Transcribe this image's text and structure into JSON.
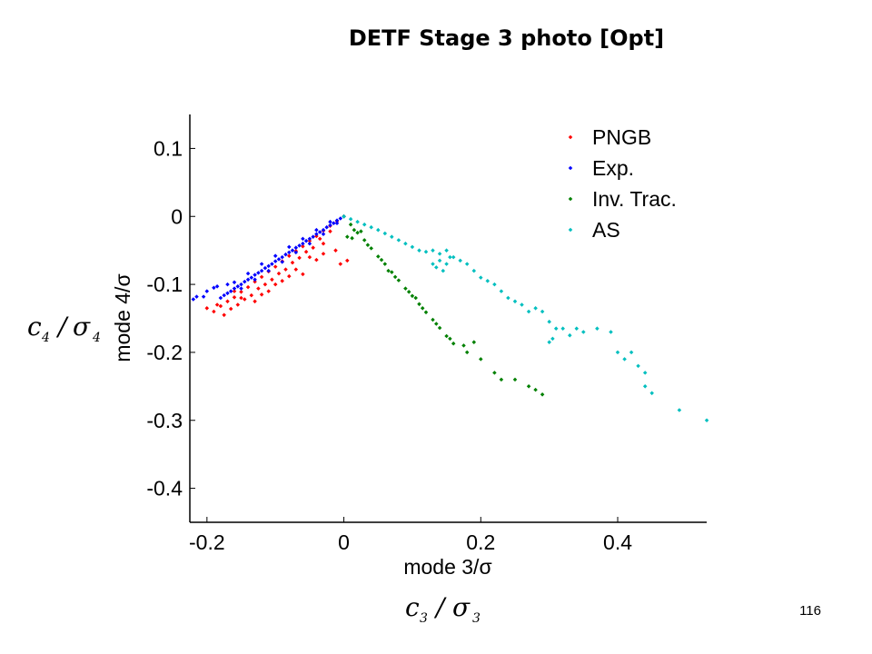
{
  "slide": {
    "title": "DETF Stage 3 photo [Opt]",
    "page_number": "116",
    "math_x_label": {
      "symbol": "c",
      "sub": "3",
      "sigma": "σ",
      "sigma_sub": "3"
    },
    "math_y_label": {
      "symbol": "c",
      "sub": "4",
      "sigma": "σ",
      "sigma_sub": "4"
    }
  },
  "chart_data": {
    "type": "scatter",
    "xlabel": "mode 3/σ",
    "ylabel": "mode 4/σ",
    "xlim": [
      -0.225,
      0.53
    ],
    "ylim": [
      -0.45,
      0.15
    ],
    "xticks": [
      -0.2,
      0,
      0.2,
      0.4
    ],
    "xtick_labels": [
      "-0.2",
      "0",
      "0.2",
      "0.4"
    ],
    "yticks": [
      0.1,
      0,
      -0.1,
      -0.2,
      -0.3,
      -0.4
    ],
    "ytick_labels": [
      "0.1",
      "0",
      "-0.1",
      "-0.2",
      "-0.3",
      "-0.4"
    ],
    "grid": false,
    "legend_position": "top-right",
    "colors": {
      "PNGB": "#ff0000",
      "Exp.": "#0000ff",
      "Inv. Trac.": "#008000",
      "AS": "#00bfbf"
    },
    "series": [
      {
        "name": "PNGB",
        "points": [
          [
            0,
            0
          ],
          [
            -0.01,
            -0.007
          ],
          [
            -0.02,
            -0.014
          ],
          [
            -0.03,
            -0.021
          ],
          [
            -0.04,
            -0.029
          ],
          [
            -0.05,
            -0.036
          ],
          [
            -0.06,
            -0.044
          ],
          [
            -0.07,
            -0.051
          ],
          [
            -0.08,
            -0.058
          ],
          [
            -0.09,
            -0.066
          ],
          [
            -0.1,
            -0.074
          ],
          [
            -0.11,
            -0.081
          ],
          [
            -0.12,
            -0.089
          ],
          [
            -0.13,
            -0.096
          ],
          [
            -0.14,
            -0.104
          ],
          [
            -0.15,
            -0.111
          ],
          [
            -0.16,
            -0.119
          ],
          [
            -0.17,
            -0.125
          ],
          [
            -0.18,
            -0.132
          ],
          [
            -0.19,
            -0.14
          ],
          [
            -0.02,
            -0.022
          ],
          [
            -0.035,
            -0.033
          ],
          [
            -0.045,
            -0.046
          ],
          [
            -0.055,
            -0.052
          ],
          [
            -0.065,
            -0.061
          ],
          [
            -0.075,
            -0.068
          ],
          [
            -0.085,
            -0.078
          ],
          [
            -0.095,
            -0.084
          ],
          [
            -0.105,
            -0.093
          ],
          [
            -0.115,
            -0.1
          ],
          [
            -0.125,
            -0.106
          ],
          [
            -0.135,
            -0.116
          ],
          [
            -0.145,
            -0.122
          ],
          [
            -0.155,
            -0.13
          ],
          [
            -0.165,
            -0.136
          ],
          [
            -0.03,
            -0.04
          ],
          [
            -0.05,
            -0.06
          ],
          [
            -0.07,
            -0.078
          ],
          [
            -0.09,
            -0.095
          ],
          [
            -0.11,
            -0.11
          ],
          [
            -0.13,
            -0.125
          ],
          [
            -0.175,
            -0.145
          ],
          [
            -0.185,
            -0.13
          ],
          [
            -0.2,
            -0.135
          ],
          [
            -0.012,
            -0.05
          ],
          [
            -0.005,
            -0.07
          ],
          [
            0.005,
            -0.065
          ],
          [
            -0.03,
            -0.055
          ],
          [
            -0.06,
            -0.085
          ],
          [
            -0.1,
            -0.1
          ],
          [
            -0.04,
            -0.064
          ],
          [
            -0.08,
            -0.088
          ],
          [
            -0.12,
            -0.115
          ],
          [
            -0.15,
            -0.12
          ],
          [
            -0.16,
            -0.11
          ]
        ]
      },
      {
        "name": "Exp.",
        "points": [
          [
            0,
            0
          ],
          [
            -0.005,
            -0.003
          ],
          [
            -0.01,
            -0.006
          ],
          [
            -0.015,
            -0.01
          ],
          [
            -0.02,
            -0.013
          ],
          [
            -0.025,
            -0.016
          ],
          [
            -0.03,
            -0.02
          ],
          [
            -0.035,
            -0.023
          ],
          [
            -0.04,
            -0.026
          ],
          [
            -0.045,
            -0.03
          ],
          [
            -0.05,
            -0.033
          ],
          [
            -0.055,
            -0.036
          ],
          [
            -0.06,
            -0.04
          ],
          [
            -0.065,
            -0.043
          ],
          [
            -0.07,
            -0.046
          ],
          [
            -0.075,
            -0.05
          ],
          [
            -0.08,
            -0.053
          ],
          [
            -0.085,
            -0.056
          ],
          [
            -0.09,
            -0.06
          ],
          [
            -0.095,
            -0.063
          ],
          [
            -0.1,
            -0.066
          ],
          [
            -0.105,
            -0.07
          ],
          [
            -0.11,
            -0.073
          ],
          [
            -0.115,
            -0.076
          ],
          [
            -0.12,
            -0.08
          ],
          [
            -0.125,
            -0.083
          ],
          [
            -0.13,
            -0.086
          ],
          [
            -0.135,
            -0.09
          ],
          [
            -0.14,
            -0.093
          ],
          [
            -0.145,
            -0.096
          ],
          [
            -0.15,
            -0.1
          ],
          [
            -0.155,
            -0.103
          ],
          [
            -0.16,
            -0.106
          ],
          [
            -0.165,
            -0.11
          ],
          [
            -0.17,
            -0.113
          ],
          [
            -0.175,
            -0.116
          ],
          [
            -0.18,
            -0.12
          ],
          [
            -0.185,
            -0.103
          ],
          [
            -0.19,
            -0.105
          ],
          [
            -0.2,
            -0.11
          ],
          [
            -0.205,
            -0.118
          ],
          [
            -0.215,
            -0.118
          ],
          [
            -0.22,
            -0.122
          ],
          [
            -0.01,
            -0.01
          ],
          [
            -0.03,
            -0.026
          ],
          [
            -0.05,
            -0.04
          ],
          [
            -0.07,
            -0.053
          ],
          [
            -0.09,
            -0.067
          ],
          [
            -0.11,
            -0.08
          ],
          [
            -0.13,
            -0.093
          ],
          [
            -0.15,
            -0.106
          ],
          [
            -0.02,
            -0.008
          ],
          [
            -0.04,
            -0.02
          ],
          [
            -0.06,
            -0.033
          ],
          [
            -0.08,
            -0.045
          ],
          [
            -0.1,
            -0.058
          ],
          [
            -0.12,
            -0.07
          ],
          [
            -0.14,
            -0.084
          ],
          [
            -0.16,
            -0.097
          ],
          [
            -0.17,
            -0.1
          ]
        ]
      },
      {
        "name": "Inv. Trac.",
        "points": [
          [
            0,
            0
          ],
          [
            0.01,
            -0.012
          ],
          [
            0.02,
            -0.024
          ],
          [
            0.03,
            -0.035
          ],
          [
            0.04,
            -0.047
          ],
          [
            0.05,
            -0.059
          ],
          [
            0.06,
            -0.07
          ],
          [
            0.07,
            -0.082
          ],
          [
            0.08,
            -0.094
          ],
          [
            0.09,
            -0.106
          ],
          [
            0.1,
            -0.117
          ],
          [
            0.11,
            -0.129
          ],
          [
            0.12,
            -0.141
          ],
          [
            0.13,
            -0.152
          ],
          [
            0.14,
            -0.164
          ],
          [
            0.15,
            -0.176
          ],
          [
            0.16,
            -0.187
          ],
          [
            0.015,
            -0.02
          ],
          [
            0.035,
            -0.042
          ],
          [
            0.055,
            -0.064
          ],
          [
            0.075,
            -0.089
          ],
          [
            0.095,
            -0.111
          ],
          [
            0.115,
            -0.135
          ],
          [
            0.135,
            -0.158
          ],
          [
            0.155,
            -0.18
          ],
          [
            0.175,
            -0.19
          ],
          [
            0.18,
            -0.2
          ],
          [
            0.19,
            -0.185
          ],
          [
            0.2,
            -0.21
          ],
          [
            0.22,
            -0.23
          ],
          [
            0.23,
            -0.24
          ],
          [
            0.25,
            -0.24
          ],
          [
            0.27,
            -0.25
          ],
          [
            0.28,
            -0.255
          ],
          [
            0.29,
            -0.262
          ],
          [
            0.005,
            -0.03
          ],
          [
            0.012,
            -0.032
          ],
          [
            0.025,
            -0.022
          ],
          [
            0.065,
            -0.08
          ],
          [
            0.105,
            -0.12
          ]
        ]
      },
      {
        "name": "AS",
        "points": [
          [
            0,
            0
          ],
          [
            0.01,
            -0.004
          ],
          [
            0.02,
            -0.008
          ],
          [
            0.03,
            -0.012
          ],
          [
            0.04,
            -0.016
          ],
          [
            0.05,
            -0.02
          ],
          [
            0.06,
            -0.025
          ],
          [
            0.07,
            -0.03
          ],
          [
            0.08,
            -0.035
          ],
          [
            0.09,
            -0.04
          ],
          [
            0.1,
            -0.045
          ],
          [
            0.11,
            -0.05
          ],
          [
            0.12,
            -0.052
          ],
          [
            0.13,
            -0.05
          ],
          [
            0.14,
            -0.055
          ],
          [
            0.15,
            -0.05
          ],
          [
            0.16,
            -0.06
          ],
          [
            0.17,
            -0.065
          ],
          [
            0.18,
            -0.07
          ],
          [
            0.19,
            -0.08
          ],
          [
            0.2,
            -0.09
          ],
          [
            0.21,
            -0.095
          ],
          [
            0.22,
            -0.1
          ],
          [
            0.23,
            -0.11
          ],
          [
            0.24,
            -0.12
          ],
          [
            0.25,
            -0.125
          ],
          [
            0.26,
            -0.13
          ],
          [
            0.27,
            -0.14
          ],
          [
            0.28,
            -0.135
          ],
          [
            0.29,
            -0.14
          ],
          [
            0.3,
            -0.155
          ],
          [
            0.31,
            -0.165
          ],
          [
            0.305,
            -0.18
          ],
          [
            0.3,
            -0.185
          ],
          [
            0.32,
            -0.165
          ],
          [
            0.33,
            -0.175
          ],
          [
            0.34,
            -0.165
          ],
          [
            0.35,
            -0.17
          ],
          [
            0.37,
            -0.165
          ],
          [
            0.39,
            -0.17
          ],
          [
            0.4,
            -0.2
          ],
          [
            0.41,
            -0.21
          ],
          [
            0.42,
            -0.2
          ],
          [
            0.43,
            -0.22
          ],
          [
            0.44,
            -0.23
          ],
          [
            0.44,
            -0.25
          ],
          [
            0.45,
            -0.26
          ],
          [
            0.49,
            -0.285
          ],
          [
            0.53,
            -0.3
          ],
          [
            0.13,
            -0.07
          ],
          [
            0.135,
            -0.075
          ],
          [
            0.145,
            -0.08
          ],
          [
            0.15,
            -0.07
          ],
          [
            0.14,
            -0.065
          ],
          [
            0.155,
            -0.06
          ]
        ]
      }
    ]
  }
}
